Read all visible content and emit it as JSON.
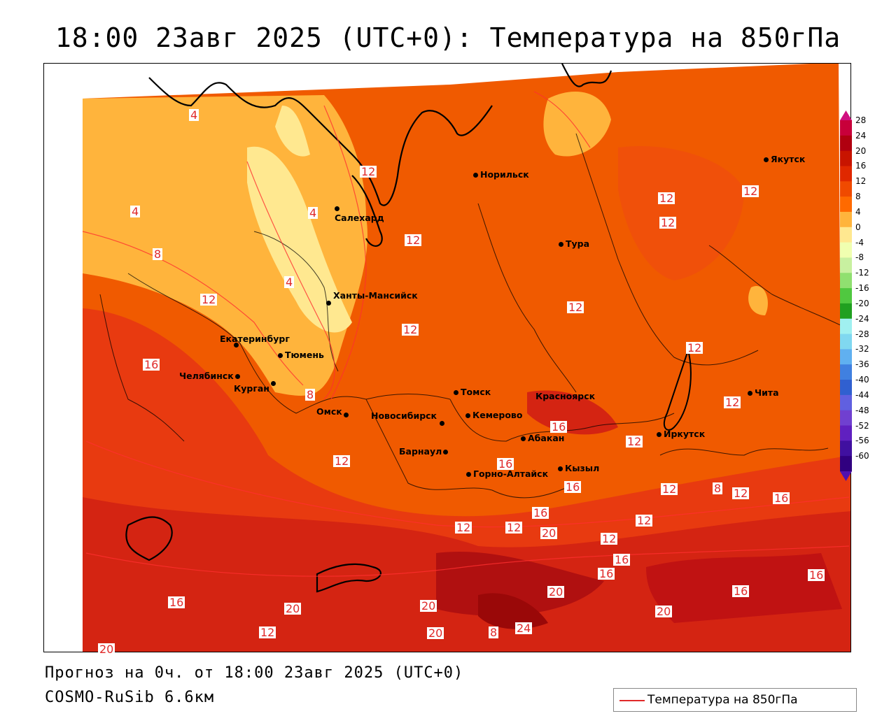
{
  "title": "18:00 23авг 2025 (UTC+0): Температура на 850гПа",
  "forecast_text": "Прогноз на 0ч. от 18:00 23авг 2025 (UTC+0)",
  "model_text": "COSMO-RuSib 6.6км",
  "legend": {
    "label": "Температура на 850гПа",
    "line_color": "#e02a2a"
  },
  "cities": [
    {
      "name": "Норильск"
    },
    {
      "name": "Якутск"
    },
    {
      "name": "Салехард"
    },
    {
      "name": "Тура"
    },
    {
      "name": "Ханты-Мансийск"
    },
    {
      "name": "Екатеринбург"
    },
    {
      "name": "Тюмень"
    },
    {
      "name": "Челябинск"
    },
    {
      "name": "Курган"
    },
    {
      "name": "Томск"
    },
    {
      "name": "Красноярск"
    },
    {
      "name": "Омск"
    },
    {
      "name": "Новосибирск"
    },
    {
      "name": "Кемерово"
    },
    {
      "name": "Абакан"
    },
    {
      "name": "Иркутск"
    },
    {
      "name": "Чита"
    },
    {
      "name": "Барнаул"
    },
    {
      "name": "Кызыл"
    },
    {
      "name": "Горно-Алтайск"
    }
  ],
  "contour_labels": [
    "4",
    "4",
    "4",
    "4",
    "8",
    "12",
    "12",
    "12",
    "12",
    "12",
    "12",
    "12",
    "12",
    "12",
    "12",
    "12",
    "12",
    "12",
    "12",
    "16",
    "16",
    "16",
    "16",
    "16",
    "16",
    "16",
    "16",
    "16",
    "16",
    "20",
    "20",
    "20",
    "20",
    "20",
    "20",
    "24",
    "8",
    "8",
    "8",
    "12",
    "12",
    "12",
    "12",
    "16",
    "12",
    "20"
  ],
  "colorbar": {
    "ticks": [
      "28",
      "24",
      "20",
      "16",
      "12",
      "8",
      "4",
      "0",
      "-4",
      "-8",
      "-12",
      "-16",
      "-20",
      "-24",
      "-28",
      "-32",
      "-36",
      "-40",
      "-44",
      "-48",
      "-52",
      "-56",
      "-60"
    ],
    "colors": [
      "#c8003a",
      "#b00010",
      "#c81400",
      "#e02800",
      "#f04a00",
      "#ff6a00",
      "#ffb43c",
      "#ffe890",
      "#f0ffb0",
      "#c8f0a0",
      "#90e070",
      "#50c840",
      "#20a020",
      "#a0f0f0",
      "#80d8f0",
      "#60b0f0",
      "#4080e0",
      "#3060d0",
      "#6060e0",
      "#7040d0",
      "#6020c0",
      "#4010a0",
      "#300080"
    ]
  }
}
